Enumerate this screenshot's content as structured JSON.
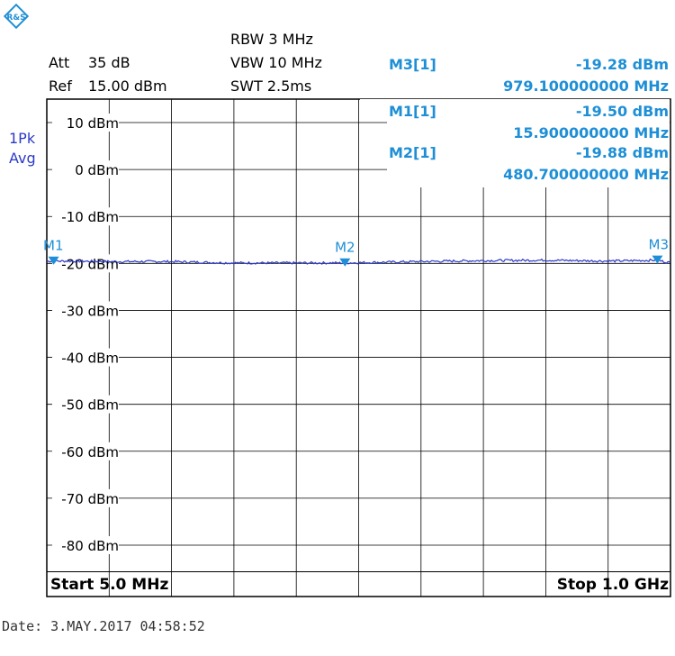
{
  "settings": {
    "att_label": "Att",
    "att_value": "35 dB",
    "ref_label": "Ref",
    "ref_value": "15.00 dBm",
    "rbw": "RBW 3 MHz",
    "vbw": "VBW 10 MHz",
    "swt": "SWT 2.5ms"
  },
  "trace_mode": {
    "line1": "1Pk",
    "line2": "Avg"
  },
  "markers": [
    {
      "name": "M3[1]",
      "level": "-19.28 dBm",
      "freq": "979.100000000 MHz"
    },
    {
      "name": "M1[1]",
      "level": "-19.50 dBm",
      "freq": "15.900000000 MHz"
    },
    {
      "name": "M2[1]",
      "level": "-19.88 dBm",
      "freq": "480.700000000 MHz"
    }
  ],
  "axis": {
    "start": "Start 5.0 MHz",
    "stop": "Stop 1.0 GHz"
  },
  "footer": {
    "date": "Date: 3.MAY.2017  04:58:52"
  },
  "colors": {
    "trace": "#2b39c8",
    "marker": "#1e8fd6",
    "grid": "#000000"
  },
  "chart_data": {
    "type": "line",
    "x_start_mhz": 5.0,
    "x_stop_mhz": 1000.0,
    "ylim": [
      -85,
      15
    ],
    "y_ticks": [
      10,
      0,
      -10,
      -20,
      -30,
      -40,
      -50,
      -60,
      -70,
      -80
    ],
    "y_tick_labels": [
      "10 dBm",
      "0 dBm",
      "-10 dBm",
      "-20 dBm",
      "-30 dBm",
      "-40 dBm",
      "-50 dBm",
      "-60 dBm",
      "-70 dBm",
      "-80 dBm"
    ],
    "x_divisions": 10,
    "grid": true,
    "series": [
      {
        "x": [
          5,
          50,
          100,
          200,
          300,
          400,
          480.7,
          600,
          700,
          800,
          900,
          979.1,
          1000
        ],
        "y": [
          -19.5,
          -19.5,
          -19.6,
          -19.6,
          -19.9,
          -19.9,
          -19.9,
          -19.6,
          -19.4,
          -19.3,
          -19.5,
          -19.3,
          -19.9
        ]
      }
    ],
    "markers": [
      {
        "label": "M1",
        "x": 15.9,
        "y": -19.5
      },
      {
        "label": "M2",
        "x": 480.7,
        "y": -19.88
      },
      {
        "label": "M3",
        "x": 979.1,
        "y": -19.28
      }
    ]
  }
}
